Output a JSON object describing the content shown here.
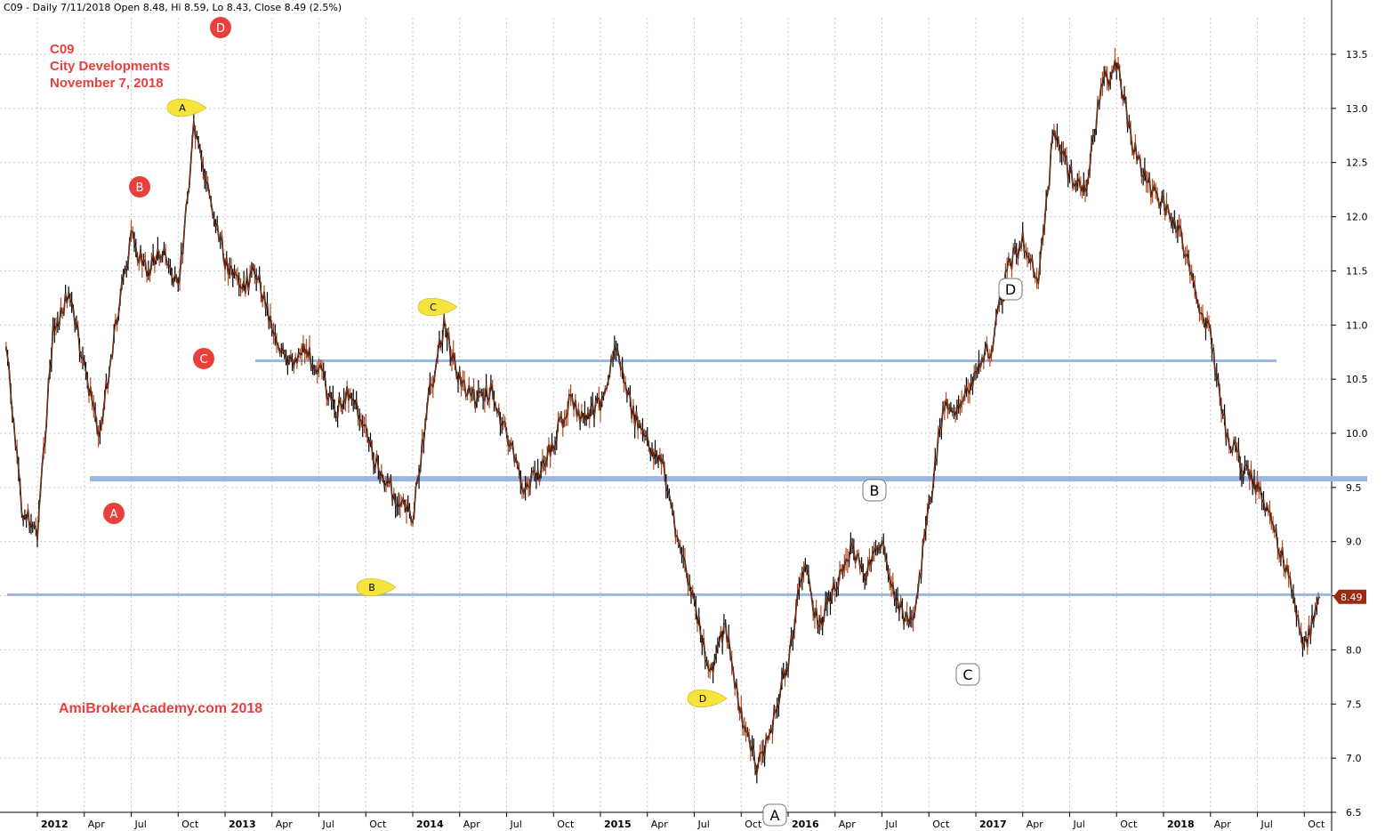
{
  "header": {
    "info": "C09 - Daily 7/11/2018 Open 8.48, Hi 8.59, Lo 8.43, Close 8.49 (2.5%)"
  },
  "title_block": {
    "symbol": "C09",
    "name": "City Developments",
    "date": "November 7, 2018"
  },
  "watermark": "AmiBrokerAcademy.com  2018",
  "colors": {
    "candle_up": "#b5471f",
    "candle_down": "#000000",
    "support_line": "#9cb7e0",
    "red_marker": "#e8403c",
    "yellow_marker": "#f6e33c",
    "price_tag": "#9c2a12",
    "grid": "#c8c8c8"
  },
  "chart_data": {
    "type": "line",
    "ylim": [
      6.5,
      13.7
    ],
    "y_ticks": [
      "6.5",
      "7.0",
      "7.5",
      "8.0",
      "8.5",
      "9.0",
      "9.5",
      "10.0",
      "10.5",
      "11.0",
      "11.5",
      "12.0",
      "12.5",
      "13.0",
      "13.5"
    ],
    "x_ticks": [
      {
        "label": "2012",
        "year": true
      },
      {
        "label": "Apr",
        "year": false
      },
      {
        "label": "Jul",
        "year": false
      },
      {
        "label": "Oct",
        "year": false
      },
      {
        "label": "2013",
        "year": true
      },
      {
        "label": "Apr",
        "year": false
      },
      {
        "label": "Jul",
        "year": false
      },
      {
        "label": "Oct",
        "year": false
      },
      {
        "label": "2014",
        "year": true
      },
      {
        "label": "Apr",
        "year": false
      },
      {
        "label": "Jul",
        "year": false
      },
      {
        "label": "Oct",
        "year": false
      },
      {
        "label": "2015",
        "year": true
      },
      {
        "label": "Apr",
        "year": false
      },
      {
        "label": "Jul",
        "year": false
      },
      {
        "label": "Oct",
        "year": false
      },
      {
        "label": "2016",
        "year": true
      },
      {
        "label": "Apr",
        "year": false
      },
      {
        "label": "Jul",
        "year": false
      },
      {
        "label": "Oct",
        "year": false
      },
      {
        "label": "2017",
        "year": true
      },
      {
        "label": "Apr",
        "year": false
      },
      {
        "label": "Jul",
        "year": false
      },
      {
        "label": "Oct",
        "year": false
      },
      {
        "label": "2018",
        "year": true
      },
      {
        "label": "Apr",
        "year": false
      },
      {
        "label": "Jul",
        "year": false
      },
      {
        "label": "Oct",
        "year": false
      }
    ],
    "series": [
      {
        "x": [
          "2011-11",
          "2011-12",
          "2012-01",
          "2012-02",
          "2012-03",
          "2012-04",
          "2012-05",
          "2012-06",
          "2012-07",
          "2012-08",
          "2012-09",
          "2012-10",
          "2012-11",
          "2012-12",
          "2013-01",
          "2013-02",
          "2013-03",
          "2013-04",
          "2013-05",
          "2013-06",
          "2013-07",
          "2013-08",
          "2013-09",
          "2013-10",
          "2013-11",
          "2013-12",
          "2014-01",
          "2014-02",
          "2014-03",
          "2014-04",
          "2014-05",
          "2014-06",
          "2014-07",
          "2014-08",
          "2014-09",
          "2014-10",
          "2014-11",
          "2014-12",
          "2015-01",
          "2015-02",
          "2015-03",
          "2015-04",
          "2015-05",
          "2015-06",
          "2015-07",
          "2015-08",
          "2015-09",
          "2015-10",
          "2015-11",
          "2015-12",
          "2016-01",
          "2016-02",
          "2016-03",
          "2016-04",
          "2016-05",
          "2016-06",
          "2016-07",
          "2016-08",
          "2016-09",
          "2016-10",
          "2016-11",
          "2016-12",
          "2017-01",
          "2017-02",
          "2017-03",
          "2017-04",
          "2017-05",
          "2017-06",
          "2017-07",
          "2017-08",
          "2017-09",
          "2017-10",
          "2017-11",
          "2017-12",
          "2018-01",
          "2018-02",
          "2018-03",
          "2018-04",
          "2018-05",
          "2018-06",
          "2018-07",
          "2018-08",
          "2018-09",
          "2018-10",
          "2018-11"
        ],
        "values": [
          10.8,
          9.3,
          9.1,
          10.9,
          11.3,
          10.6,
          10.0,
          11.0,
          11.8,
          11.5,
          11.7,
          11.3,
          12.8,
          12.2,
          11.6,
          11.3,
          11.5,
          11.0,
          10.6,
          10.8,
          10.6,
          10.2,
          10.4,
          10.0,
          9.6,
          9.4,
          9.2,
          10.3,
          11.0,
          10.5,
          10.3,
          10.4,
          10.0,
          9.5,
          9.6,
          9.9,
          10.3,
          10.1,
          10.3,
          10.8,
          10.2,
          9.9,
          9.7,
          9.0,
          8.4,
          7.8,
          8.2,
          7.4,
          6.9,
          7.3,
          7.9,
          8.8,
          8.2,
          8.6,
          8.9,
          8.7,
          9.0,
          8.4,
          8.2,
          9.3,
          10.3,
          10.2,
          10.6,
          10.8,
          11.5,
          11.8,
          11.4,
          12.8,
          12.4,
          12.2,
          13.2,
          13.4,
          12.7,
          12.3,
          12.1,
          11.9,
          11.3,
          10.9,
          10.0,
          9.7,
          9.5,
          9.1,
          8.7,
          8.0,
          8.49
        ]
      }
    ],
    "support_lines": [
      10.67,
      9.58,
      8.51
    ],
    "last_price": "8.49",
    "markers_red": [
      {
        "label": "D",
        "date": "2012-12"
      },
      {
        "label": "B",
        "date": "2012-07"
      },
      {
        "label": "C",
        "date": "2012-11"
      },
      {
        "label": "A",
        "date": "2012-04"
      }
    ],
    "markers_yellow": [
      {
        "label": "A",
        "date": "2012-11"
      },
      {
        "label": "C",
        "date": "2014-03"
      },
      {
        "label": "B",
        "date": "2013-10"
      },
      {
        "label": "D",
        "date": "2015-09"
      }
    ],
    "markers_white": [
      {
        "label": "D",
        "date": "2017-02"
      },
      {
        "label": "B",
        "date": "2016-09"
      },
      {
        "label": "C",
        "date": "2016-11"
      },
      {
        "label": "A",
        "date": "2015-11"
      }
    ]
  }
}
